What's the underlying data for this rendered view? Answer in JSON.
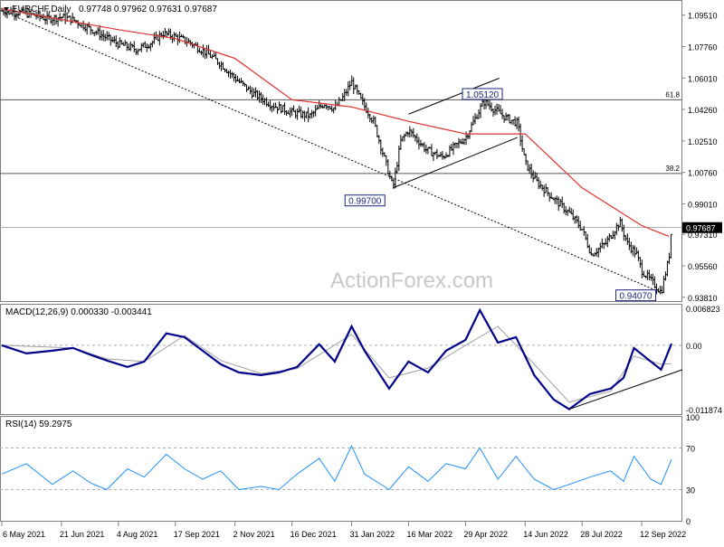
{
  "header": {
    "symbol_label": "EURCHF,Daily",
    "ohlc": "0.97748 0.97962 0.97631 0.97687"
  },
  "watermark": "ActionForex.com",
  "colors": {
    "bars": "#000000",
    "moving_average": "#e03030",
    "macd_line": "#00008b",
    "signal_line": "#a0a0a0",
    "rsi_line": "#1e90ff",
    "label_box_border": "#1a237e",
    "current_price_bg": "#000000"
  },
  "chart_data": [
    {
      "type": "ohlc",
      "panel": "price",
      "title": "EURCHF,Daily",
      "y_ticks": [
        "1.09510",
        "1.07760",
        "1.06010",
        "1.04260",
        "1.02510",
        "1.00760",
        "0.99010",
        "0.97310",
        "0.95560",
        "0.93810"
      ],
      "ylim": [
        0.936,
        1.103
      ],
      "x_ticks": [
        "6 May 2021",
        "21 Jun 2021",
        "4 Aug 2021",
        "17 Sep 2021",
        "2 Nov 2021",
        "16 Dec 2021",
        "31 Jan 2022",
        "16 Mar 2022",
        "29 Apr 2022",
        "14 Jun 2022",
        "28 Jul 2022",
        "12 Sep 2022"
      ],
      "close_path": [
        [
          "6 May 2021",
          1.0975
        ],
        [
          "20 May 2021",
          1.0965
        ],
        [
          "1 Jun 2021",
          1.095
        ],
        [
          "10 Jun 2021",
          1.093
        ],
        [
          "21 Jun 2021",
          1.094
        ],
        [
          "30 Jun 2021",
          1.0925
        ],
        [
          "12 Jul 2021",
          1.088
        ],
        [
          "22 Jul 2021",
          1.084
        ],
        [
          "4 Aug 2021",
          1.079
        ],
        [
          "18 Aug 2021",
          1.076
        ],
        [
          "30 Aug 2021",
          1.08
        ],
        [
          "7 Sep 2021",
          1.085
        ],
        [
          "17 Sep 2021",
          1.083
        ],
        [
          "28 Sep 2021",
          1.08
        ],
        [
          "11 Oct 2021",
          1.074
        ],
        [
          "22 Oct 2021",
          1.068
        ],
        [
          "2 Nov 2021",
          1.06
        ],
        [
          "15 Nov 2021",
          1.052
        ],
        [
          "1 Dec 2021",
          1.045
        ],
        [
          "16 Dec 2021",
          1.041
        ],
        [
          "30 Dec 2021",
          1.039
        ],
        [
          "10 Jan 2022",
          1.046
        ],
        [
          "18 Jan 2022",
          1.043
        ],
        [
          "25 Jan 2022",
          1.05
        ],
        [
          "31 Jan 2022",
          1.058
        ],
        [
          "7 Feb 2022",
          1.048
        ],
        [
          "17 Feb 2022",
          1.036
        ],
        [
          "4 Mar 2022",
          0.999
        ],
        [
          "10 Mar 2022",
          1.025
        ],
        [
          "16 Mar 2022",
          1.031
        ],
        [
          "30 Mar 2022",
          1.02
        ],
        [
          "11 Apr 2022",
          1.016
        ],
        [
          "29 Apr 2022",
          1.027
        ],
        [
          "13 May 2022",
          1.047
        ],
        [
          "30 May 2022",
          1.038
        ],
        [
          "8 Jun 2022",
          1.035
        ],
        [
          "14 Jun 2022",
          1.013
        ],
        [
          "22 Jun 2022",
          1.003
        ],
        [
          "6 Jul 2022",
          0.993
        ],
        [
          "18 Jul 2022",
          0.985
        ],
        [
          "28 Jul 2022",
          0.976
        ],
        [
          "4 Aug 2022",
          0.962
        ],
        [
          "15 Aug 2022",
          0.968
        ],
        [
          "26 Aug 2022",
          0.98
        ],
        [
          "1 Sep 2022",
          0.968
        ],
        [
          "8 Sep 2022",
          0.962
        ],
        [
          "12 Sep 2022",
          0.953
        ],
        [
          "22 Sep 2022",
          0.945
        ],
        [
          "27 Sep 2022",
          0.9408
        ],
        [
          "3 Oct 2022",
          0.96
        ],
        [
          "5 Oct 2022",
          0.9769
        ]
      ],
      "moving_average_path": [
        [
          "6 May 2021",
          1.0985
        ],
        [
          "4 Aug 2021",
          1.087
        ],
        [
          "17 Sep 2021",
          1.082
        ],
        [
          "2 Nov 2021",
          1.071
        ],
        [
          "16 Dec 2021",
          1.048
        ],
        [
          "31 Jan 2022",
          1.044
        ],
        [
          "16 Mar 2022",
          1.036
        ],
        [
          "29 Apr 2022",
          1.029
        ],
        [
          "14 Jun 2022",
          1.029
        ],
        [
          "28 Jul 2022",
          0.999
        ],
        [
          "12 Sep 2022",
          0.978
        ],
        [
          "3 Oct 2022",
          0.972
        ]
      ],
      "horizontal_lines": [
        {
          "value": 1.048,
          "label": "61.8"
        },
        {
          "value": 1.007,
          "label": "38.2"
        },
        {
          "value": 0.977,
          "label": ""
        }
      ],
      "trendlines": [
        {
          "style": "dotted",
          "from": [
            "6 May 2021",
            1.0975
          ],
          "to": [
            "27 Sep 2022",
            0.9407
          ]
        },
        {
          "style": "solid",
          "from": [
            "4 Mar 2022",
            0.999
          ],
          "to": [
            "8 Jun 2022",
            1.027
          ]
        },
        {
          "style": "solid",
          "from": [
            "16 Mar 2022",
            1.04
          ],
          "to": [
            "25 May 2022",
            1.06
          ]
        }
      ],
      "annotations": [
        {
          "text": "0.99700",
          "date": "4 Mar 2022",
          "value": 0.997
        },
        {
          "text": "1.05120",
          "date": "12 May 2022",
          "value": 1.0512
        },
        {
          "text": "0.94070",
          "date": "27 Sep 2022",
          "value": 0.9407
        }
      ],
      "current_price_label": "0.97687"
    },
    {
      "type": "line",
      "panel": "macd",
      "title": "MACD(12,26,9) 0.000330 -0.003441",
      "y_ticks": [
        "0.006823",
        "0.00",
        "-0.011874"
      ],
      "ylim": [
        -0.0127,
        0.0075
      ],
      "series": [
        {
          "values": [
            [
              "6 May 2021",
              0.0
            ],
            [
              "25 May 2021",
              -0.0015
            ],
            [
              "14 Jun 2021",
              -0.001
            ],
            [
              "30 Jun 2021",
              -0.0005
            ],
            [
              "14 Jul 2021",
              -0.0018
            ],
            [
              "26 Jul 2021",
              -0.0028
            ],
            [
              "11 Aug 2021",
              -0.004
            ],
            [
              "24 Aug 2021",
              -0.003
            ],
            [
              "10 Sep 2021",
              0.0022
            ],
            [
              "24 Sep 2021",
              0.0015
            ],
            [
              "8 Oct 2021",
              -0.001
            ],
            [
              "22 Oct 2021",
              -0.0035
            ],
            [
              "5 Nov 2021",
              -0.005
            ],
            [
              "22 Nov 2021",
              -0.0055
            ],
            [
              "6 Dec 2021",
              -0.005
            ],
            [
              "20 Dec 2021",
              -0.004
            ],
            [
              "6 Jan 2022",
              0.0002
            ],
            [
              "18 Jan 2022",
              -0.003
            ],
            [
              "31 Jan 2022",
              0.0035
            ],
            [
              "10 Feb 2022",
              -0.001
            ],
            [
              "1 Mar 2022",
              -0.008
            ],
            [
              "16 Mar 2022",
              -0.003
            ],
            [
              "31 Mar 2022",
              -0.005
            ],
            [
              "14 Apr 2022",
              -0.001
            ],
            [
              "29 Apr 2022",
              0.001
            ],
            [
              "10 May 2022",
              0.0065
            ],
            [
              "24 May 2022",
              0.0005
            ],
            [
              "7 Jun 2022",
              0.0015
            ],
            [
              "21 Jun 2022",
              -0.0055
            ],
            [
              "6 Jul 2022",
              -0.01
            ],
            [
              "18 Jul 2022",
              -0.0118
            ],
            [
              "3 Aug 2022",
              -0.009
            ],
            [
              "19 Aug 2022",
              -0.008
            ],
            [
              "29 Aug 2022",
              -0.006
            ],
            [
              "6 Sep 2022",
              -0.0005
            ],
            [
              "19 Sep 2022",
              -0.003
            ],
            [
              "27 Sep 2022",
              -0.0045
            ],
            [
              "5 Oct 2022",
              0.0003
            ]
          ]
        },
        {
          "values": [
            [
              "6 May 2021",
              0.0
            ],
            [
              "30 Jun 2021",
              -0.0005
            ],
            [
              "26 Jul 2021",
              -0.0025
            ],
            [
              "24 Aug 2021",
              -0.003
            ],
            [
              "24 Sep 2021",
              0.0018
            ],
            [
              "22 Oct 2021",
              -0.0028
            ],
            [
              "22 Nov 2021",
              -0.0052
            ],
            [
              "20 Dec 2021",
              -0.0043
            ],
            [
              "31 Jan 2022",
              0.002
            ],
            [
              "1 Mar 2022",
              -0.006
            ],
            [
              "31 Mar 2022",
              -0.0042
            ],
            [
              "29 Apr 2022",
              0.0
            ],
            [
              "24 May 2022",
              0.0035
            ],
            [
              "21 Jun 2022",
              -0.0035
            ],
            [
              "18 Jul 2022",
              -0.0105
            ],
            [
              "19 Aug 2022",
              -0.0085
            ],
            [
              "6 Sep 2022",
              -0.002
            ],
            [
              "27 Sep 2022",
              -0.0035
            ],
            [
              "5 Oct 2022",
              -0.0034
            ]
          ]
        }
      ],
      "trendlines": [
        {
          "style": "solid",
          "from": [
            "18 Jul 2022",
            -0.0118
          ],
          "to": [
            "5 Oct 2022",
            -0.0045
          ]
        }
      ]
    },
    {
      "type": "line",
      "panel": "rsi",
      "title": "RSI(14) 59.2975",
      "y_ticks": [
        "100",
        "70",
        "30",
        "0"
      ],
      "ylim": [
        0,
        100
      ],
      "levels": [
        70,
        30
      ],
      "series": [
        {
          "values": [
            [
              "6 May 2021",
              45
            ],
            [
              "25 May 2021",
              55
            ],
            [
              "14 Jun 2021",
              35
            ],
            [
              "30 Jun 2021",
              48
            ],
            [
              "14 Jul 2021",
              36
            ],
            [
              "26 Jul 2021",
              30
            ],
            [
              "11 Aug 2021",
              50
            ],
            [
              "24 Aug 2021",
              42
            ],
            [
              "10 Sep 2021",
              64
            ],
            [
              "24 Sep 2021",
              50
            ],
            [
              "8 Oct 2021",
              40
            ],
            [
              "22 Oct 2021",
              48
            ],
            [
              "5 Nov 2021",
              30
            ],
            [
              "22 Nov 2021",
              33
            ],
            [
              "6 Dec 2021",
              30
            ],
            [
              "20 Dec 2021",
              45
            ],
            [
              "6 Jan 2022",
              60
            ],
            [
              "18 Jan 2022",
              38
            ],
            [
              "31 Jan 2022",
              72
            ],
            [
              "10 Feb 2022",
              45
            ],
            [
              "1 Mar 2022",
              30
            ],
            [
              "16 Mar 2022",
              52
            ],
            [
              "31 Mar 2022",
              38
            ],
            [
              "14 Apr 2022",
              55
            ],
            [
              "29 Apr 2022",
              50
            ],
            [
              "10 May 2022",
              70
            ],
            [
              "24 May 2022",
              40
            ],
            [
              "7 Jun 2022",
              62
            ],
            [
              "21 Jun 2022",
              40
            ],
            [
              "6 Jul 2022",
              30
            ],
            [
              "18 Jul 2022",
              35
            ],
            [
              "3 Aug 2022",
              42
            ],
            [
              "19 Aug 2022",
              48
            ],
            [
              "29 Aug 2022",
              38
            ],
            [
              "6 Sep 2022",
              62
            ],
            [
              "19 Sep 2022",
              40
            ],
            [
              "27 Sep 2022",
              35
            ],
            [
              "5 Oct 2022",
              59
            ]
          ]
        }
      ]
    }
  ]
}
